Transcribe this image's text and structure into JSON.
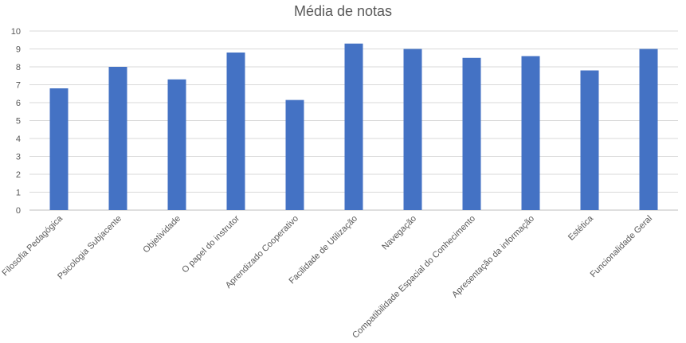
{
  "chart_data": {
    "type": "bar",
    "title": "Média de notas",
    "xlabel": "",
    "ylabel": "",
    "ylim": [
      0,
      10
    ],
    "yticks": [
      0,
      1,
      2,
      3,
      4,
      5,
      6,
      7,
      8,
      9,
      10
    ],
    "grid": true,
    "legend": "none",
    "bar_color": "#4472C4",
    "categories": [
      "Filosofia Pedagógica",
      "Psicologia Subjacente",
      "Objetividade",
      "O papel do instrutor",
      "Aprendizado Cooperativo",
      "Facilidade de Utilização",
      "Navegação",
      "Compatibilidade Espacial do Conhecimento",
      "Apresentação da informação",
      "Estética",
      "Funcionalidade Geral"
    ],
    "values": [
      6.8,
      8.0,
      7.3,
      8.8,
      6.15,
      9.3,
      9.0,
      8.5,
      8.6,
      7.8,
      9.0
    ]
  }
}
